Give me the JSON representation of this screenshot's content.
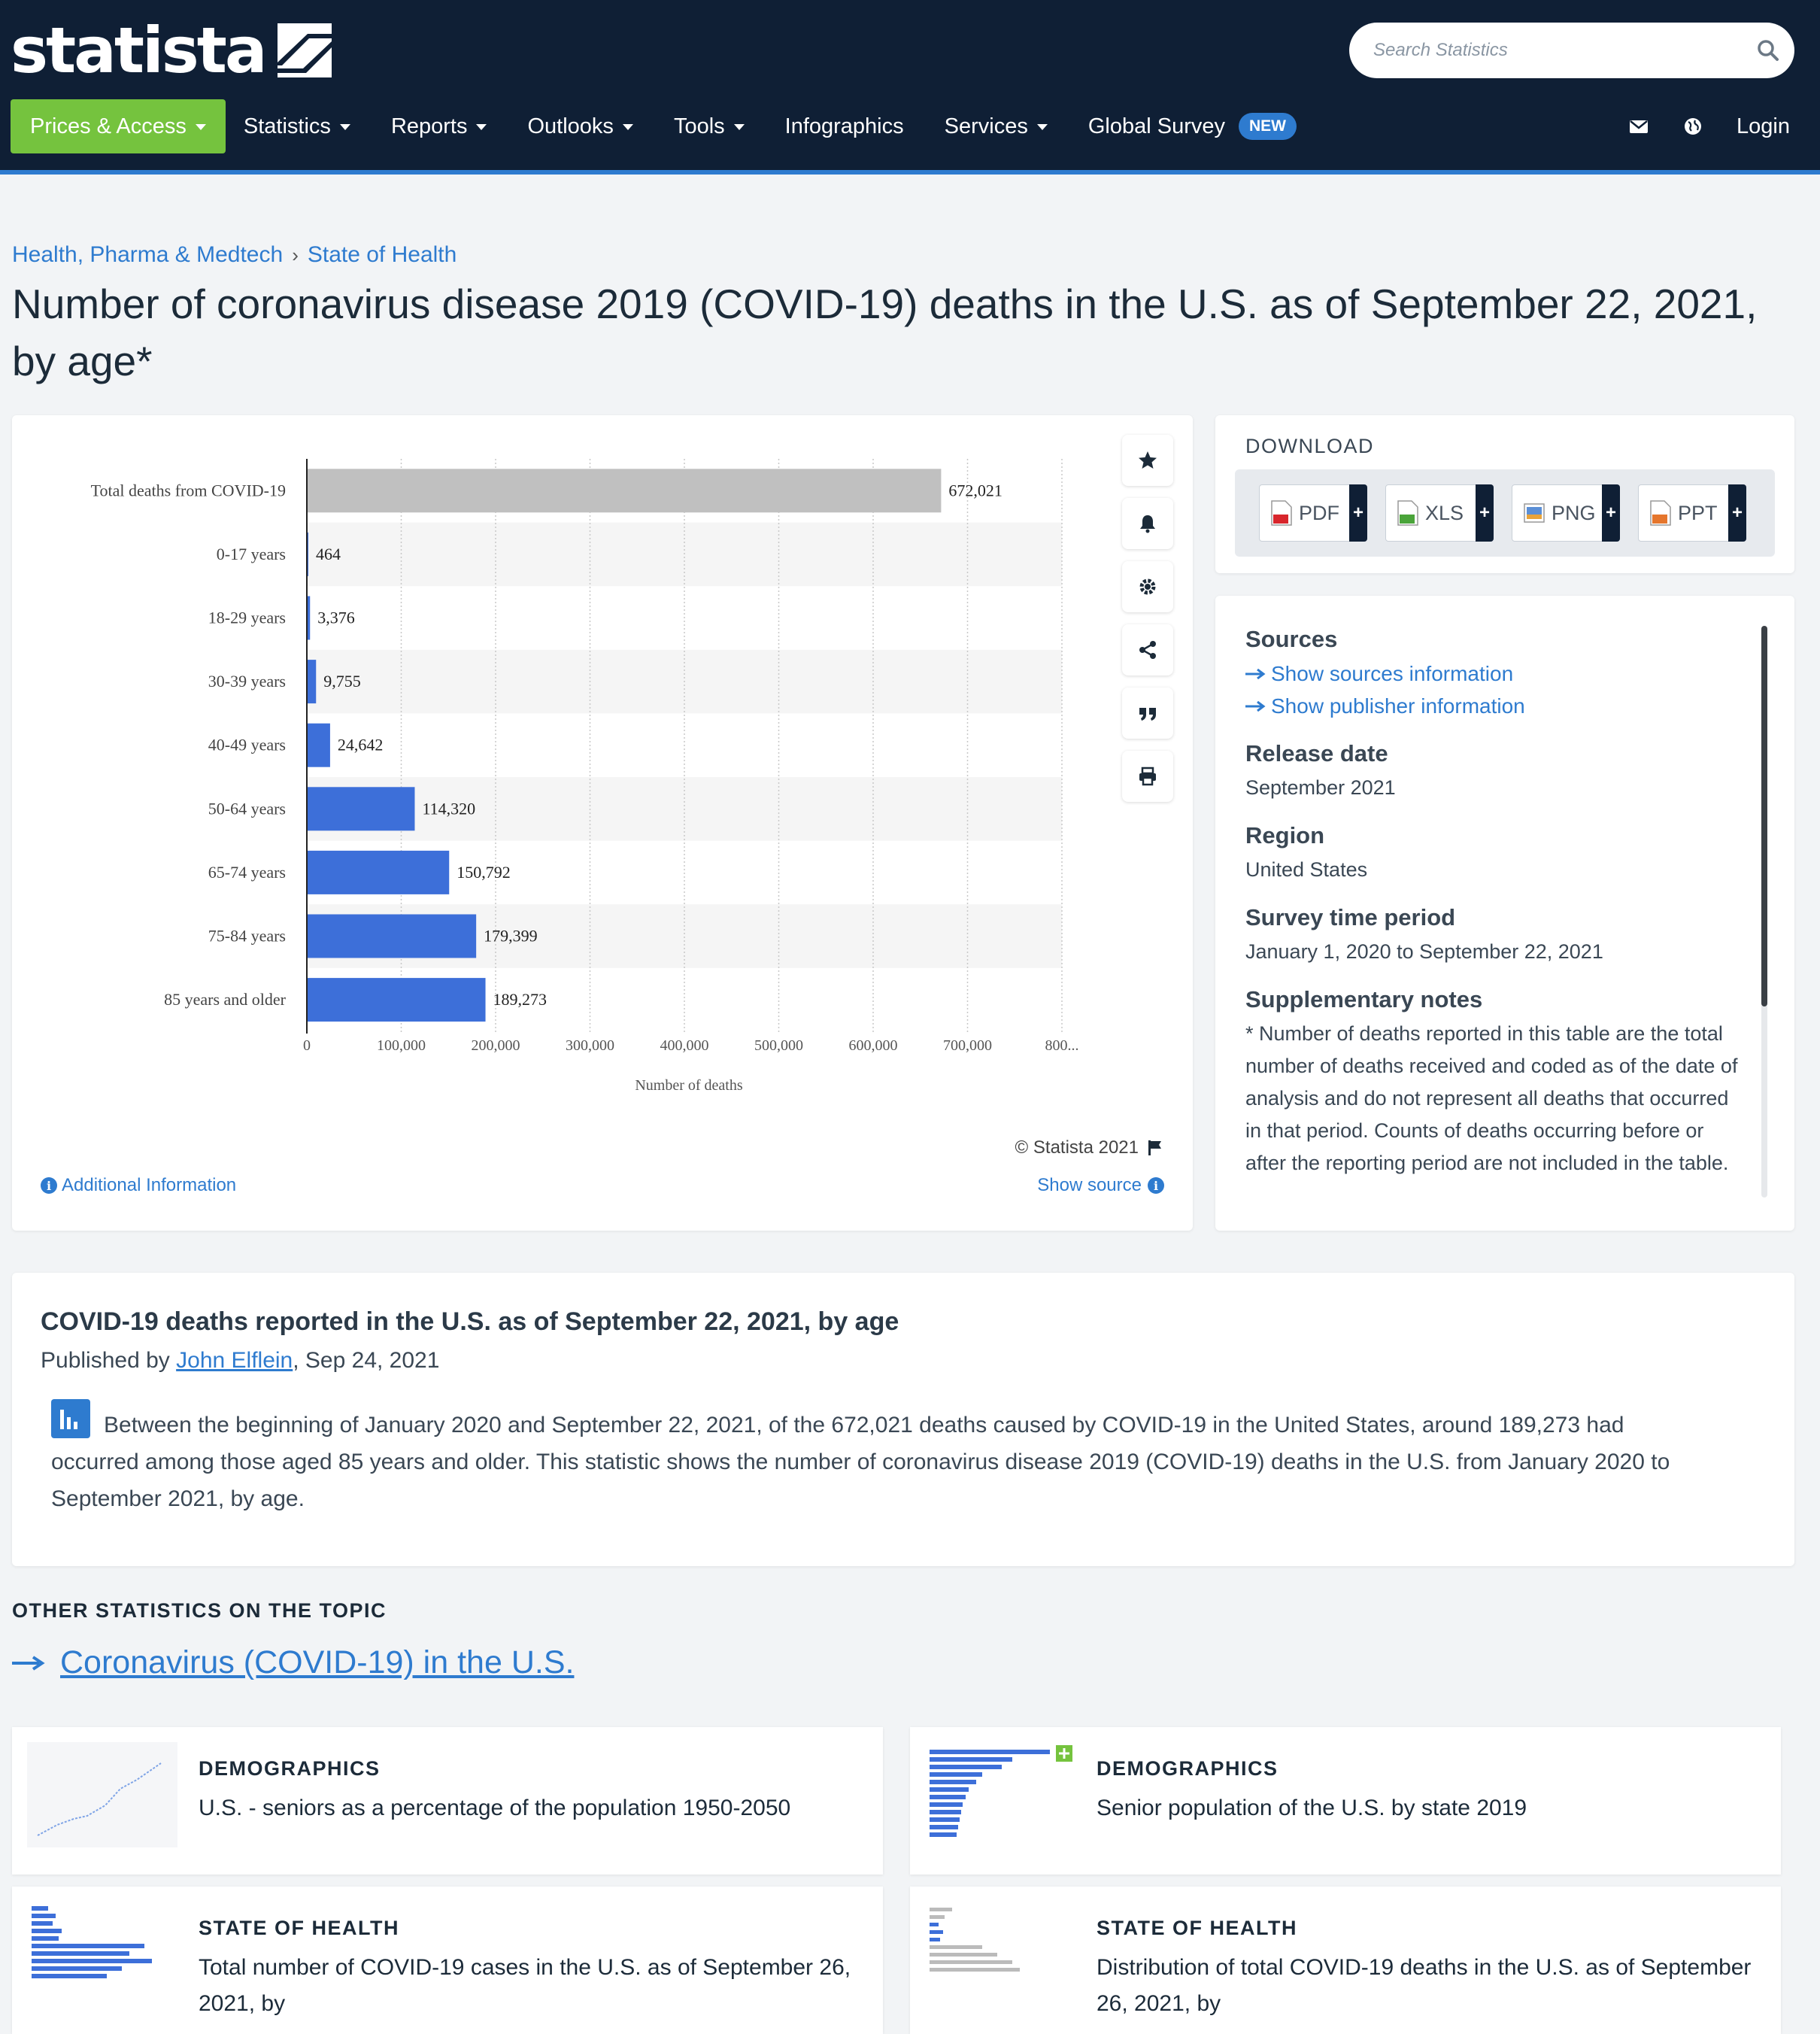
{
  "header": {
    "logo_text": "statista",
    "search_placeholder": "Search Statistics",
    "nav": [
      {
        "label": "Prices & Access",
        "dropdown": true
      },
      {
        "label": "Statistics",
        "dropdown": true
      },
      {
        "label": "Reports",
        "dropdown": true
      },
      {
        "label": "Outlooks",
        "dropdown": true
      },
      {
        "label": "Tools",
        "dropdown": true
      },
      {
        "label": "Infographics",
        "dropdown": false
      },
      {
        "label": "Services",
        "dropdown": true
      },
      {
        "label": "Global Survey",
        "dropdown": false
      }
    ],
    "new_badge": "NEW",
    "login": "Login"
  },
  "breadcrumb": {
    "items": [
      "Health, Pharma & Medtech",
      "State of Health"
    ],
    "separator": "›"
  },
  "page_title": "Number of coronavirus disease 2019 (COVID-19) deaths in the U.S. as of September 22, 2021, by age*",
  "chart_data": {
    "type": "bar",
    "orientation": "horizontal",
    "categories": [
      "Total deaths from COVID-19",
      "0-17 years",
      "18-29 years",
      "30-39 years",
      "40-49 years",
      "50-64 years",
      "65-74 years",
      "75-84 years",
      "85 years and older"
    ],
    "values": [
      672021,
      464,
      3376,
      9755,
      24642,
      114320,
      150792,
      179399,
      189273
    ],
    "value_labels": [
      "672,021",
      "464",
      "3,376",
      "9,755",
      "24,642",
      "114,320",
      "150,792",
      "179,399",
      "189,273"
    ],
    "xlabel": "Number of deaths",
    "ylabel": "",
    "xlim": [
      0,
      800000
    ],
    "ticks": [
      "0",
      "100,000",
      "200,000",
      "300,000",
      "400,000",
      "500,000",
      "600,000",
      "700,000",
      "800..."
    ],
    "colors": {
      "total": "#c0c0c0",
      "series": "#3d6fd9"
    },
    "grid": "vertical dotted",
    "zebra_rows": true
  },
  "chart_footer": {
    "copyright": "© Statista 2021",
    "additional_info": "Additional Information",
    "show_source": "Show source"
  },
  "chart_tools": [
    "star-icon",
    "bell-icon",
    "gear-icon",
    "share-icon",
    "quote-icon",
    "print-icon"
  ],
  "download": {
    "heading": "DOWNLOAD",
    "buttons": [
      "PDF",
      "XLS",
      "PNG",
      "PPT"
    ],
    "plus": "+"
  },
  "info": {
    "sources_heading": "Sources",
    "show_sources": "Show sources information",
    "show_publisher": "Show publisher information",
    "release_heading": "Release date",
    "release_value": "September 2021",
    "region_heading": "Region",
    "region_value": "United States",
    "survey_heading": "Survey time period",
    "survey_value": "January 1, 2020 to September 22, 2021",
    "notes_heading": "Supplementary notes",
    "notes_value": "* Number of deaths reported in this table are the total number of deaths received and coded as of the date of analysis and do not represent all deaths that occurred in that period. Counts of deaths occurring before or after the reporting period are not included in the table. Data during this period"
  },
  "description": {
    "title": "COVID-19 deaths reported in the U.S. as of September 22, 2021, by age",
    "published_by": "Published by",
    "author": "John Elflein",
    "date": ", Sep 24, 2021",
    "body": "Between the beginning of January 2020 and September 22, 2021, of the 672,021 deaths caused by COVID-19 in the United States, around 189,273 had occurred among those aged 85 years and older. This statistic shows the number of coronavirus disease 2019 (COVID-19) deaths in the U.S. from January 2020 to September 2021, by age."
  },
  "other_stats": {
    "heading": "OTHER STATISTICS ON THE TOPIC",
    "topic_link": "Coronavirus (COVID-19) in the U.S.",
    "cards": [
      {
        "category": "DEMOGRAPHICS",
        "title": "U.S. - seniors as a percentage of the population 1950-2050"
      },
      {
        "category": "DEMOGRAPHICS",
        "title": "Senior population of the U.S. by state 2019"
      },
      {
        "category": "STATE OF HEALTH",
        "title": "Total number of COVID-19 cases in the U.S. as of September 26, 2021, by"
      },
      {
        "category": "STATE OF HEALTH",
        "title": "Distribution of total COVID-19 deaths in the U.S. as of September 26, 2021, by"
      }
    ]
  }
}
